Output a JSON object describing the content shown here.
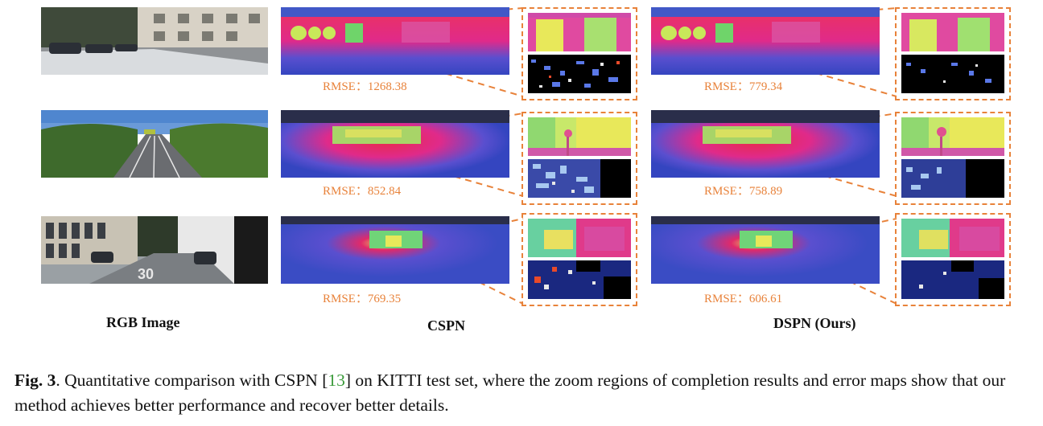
{
  "rows": [
    {
      "cspn_rmse": "RMSE：1268.38",
      "dspn_rmse": "RMSE：779.34"
    },
    {
      "cspn_rmse": "RMSE：852.84",
      "dspn_rmse": "RMSE：758.89"
    },
    {
      "cspn_rmse": "RMSE：769.35",
      "dspn_rmse": "RMSE：606.61"
    }
  ],
  "labels": {
    "rgb": "RGB Image",
    "cspn": "CSPN",
    "dspn": "DSPN (Ours)"
  },
  "caption": {
    "fig": "Fig. 3",
    "pre": ". Quantitative comparison with CSPN [",
    "ref": "13",
    "post": "] on KITTI test set, where the zoom regions of completion results and error maps show that our method achieves better performance and recover better details."
  },
  "colors": {
    "accent": "#e8823a",
    "ref": "#3a9a3a"
  }
}
